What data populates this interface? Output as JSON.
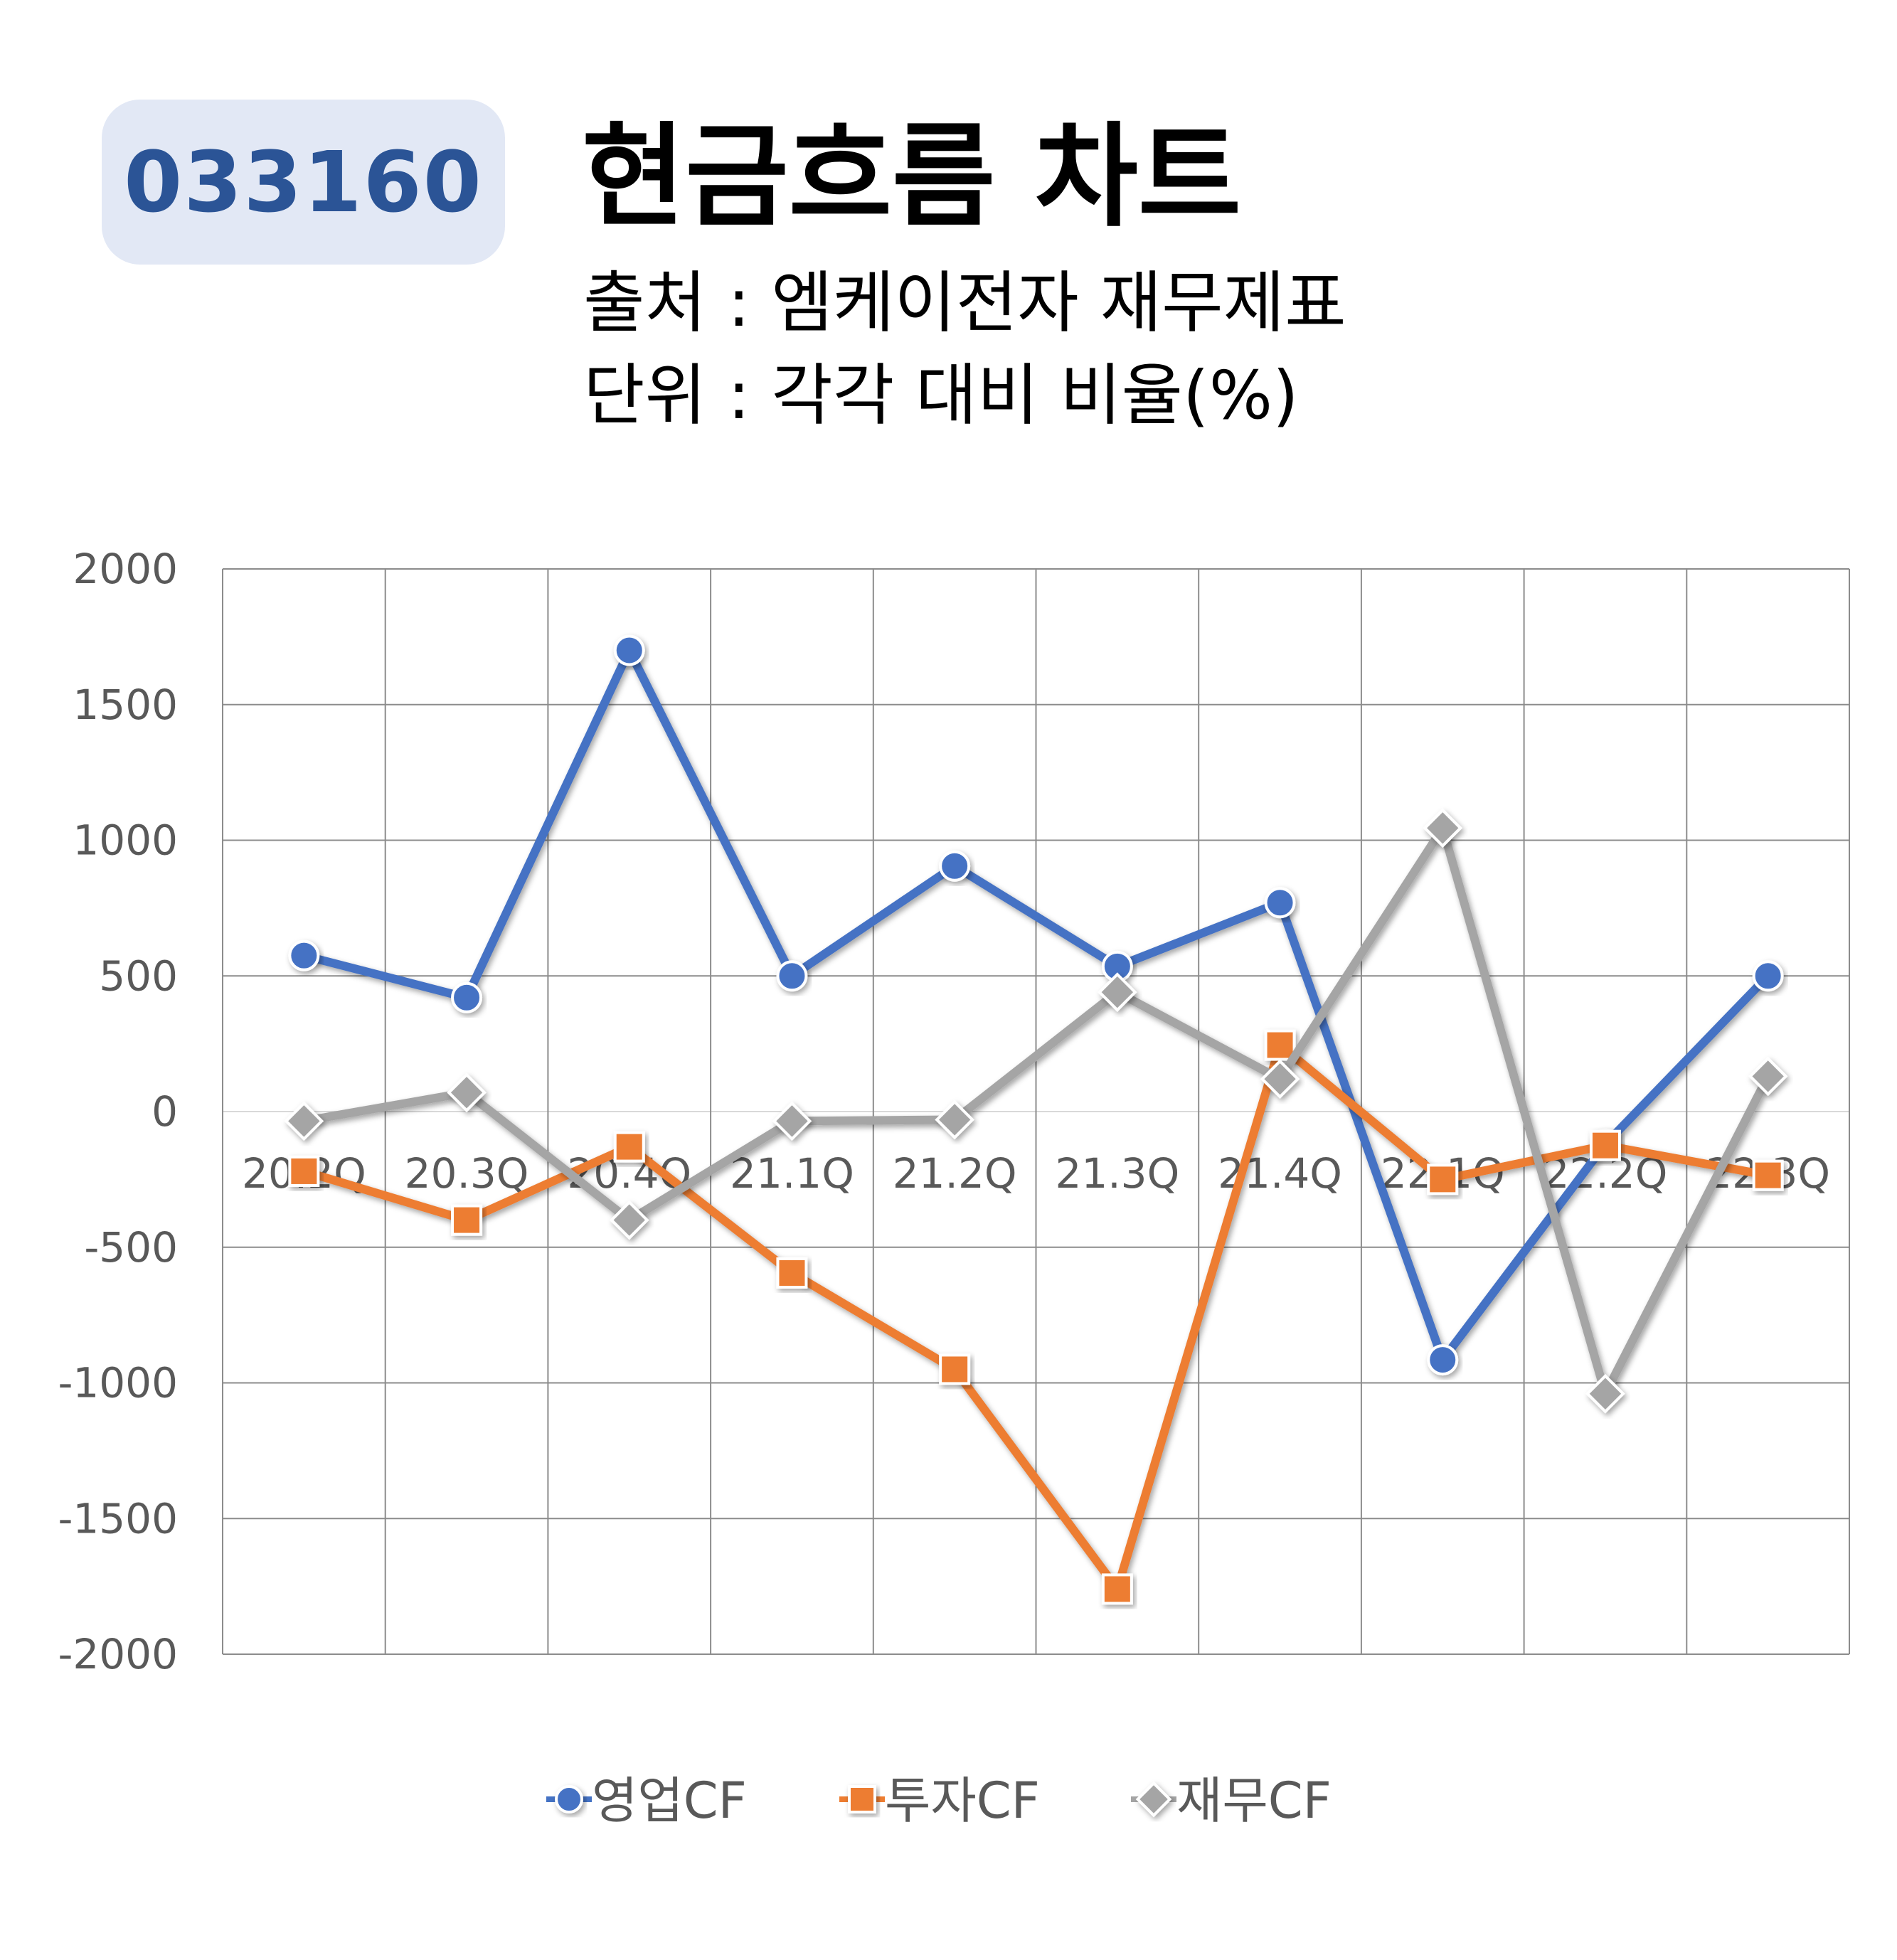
{
  "header": {
    "code": "033160",
    "title": "현금흐름 차트",
    "source": "출처 : 엠케이전자 재무제표",
    "unit": "단위 : 각각 대비 비율(%)"
  },
  "chart_data": {
    "type": "line",
    "categories": [
      "20.2Q",
      "20.3Q",
      "20.4Q",
      "21.1Q",
      "21.2Q",
      "21.3Q",
      "21.4Q",
      "22.1Q",
      "22.2Q",
      "22.3Q"
    ],
    "y_ticks": [
      "2000",
      "1500",
      "1000",
      "500",
      "0",
      "-500",
      "-1000",
      "-1500",
      "-2000"
    ],
    "ylim": [
      -2000,
      2000
    ],
    "grid": true,
    "legend_position": "bottom",
    "series": [
      {
        "name": "영업CF",
        "color": "#4472c4",
        "marker": "circle",
        "values": [
          575,
          420,
          1700,
          500,
          905,
          535,
          770,
          -915,
          -120,
          500
        ]
      },
      {
        "name": "투자CF",
        "color": "#ed7d31",
        "marker": "square",
        "values": [
          -220,
          -400,
          -130,
          -595,
          -950,
          -1760,
          245,
          -250,
          -125,
          -235
        ]
      },
      {
        "name": "재무CF",
        "color": "#a5a5a5",
        "marker": "diamond",
        "values": [
          -35,
          70,
          -400,
          -35,
          -30,
          440,
          120,
          1045,
          -1040,
          130
        ]
      }
    ]
  }
}
